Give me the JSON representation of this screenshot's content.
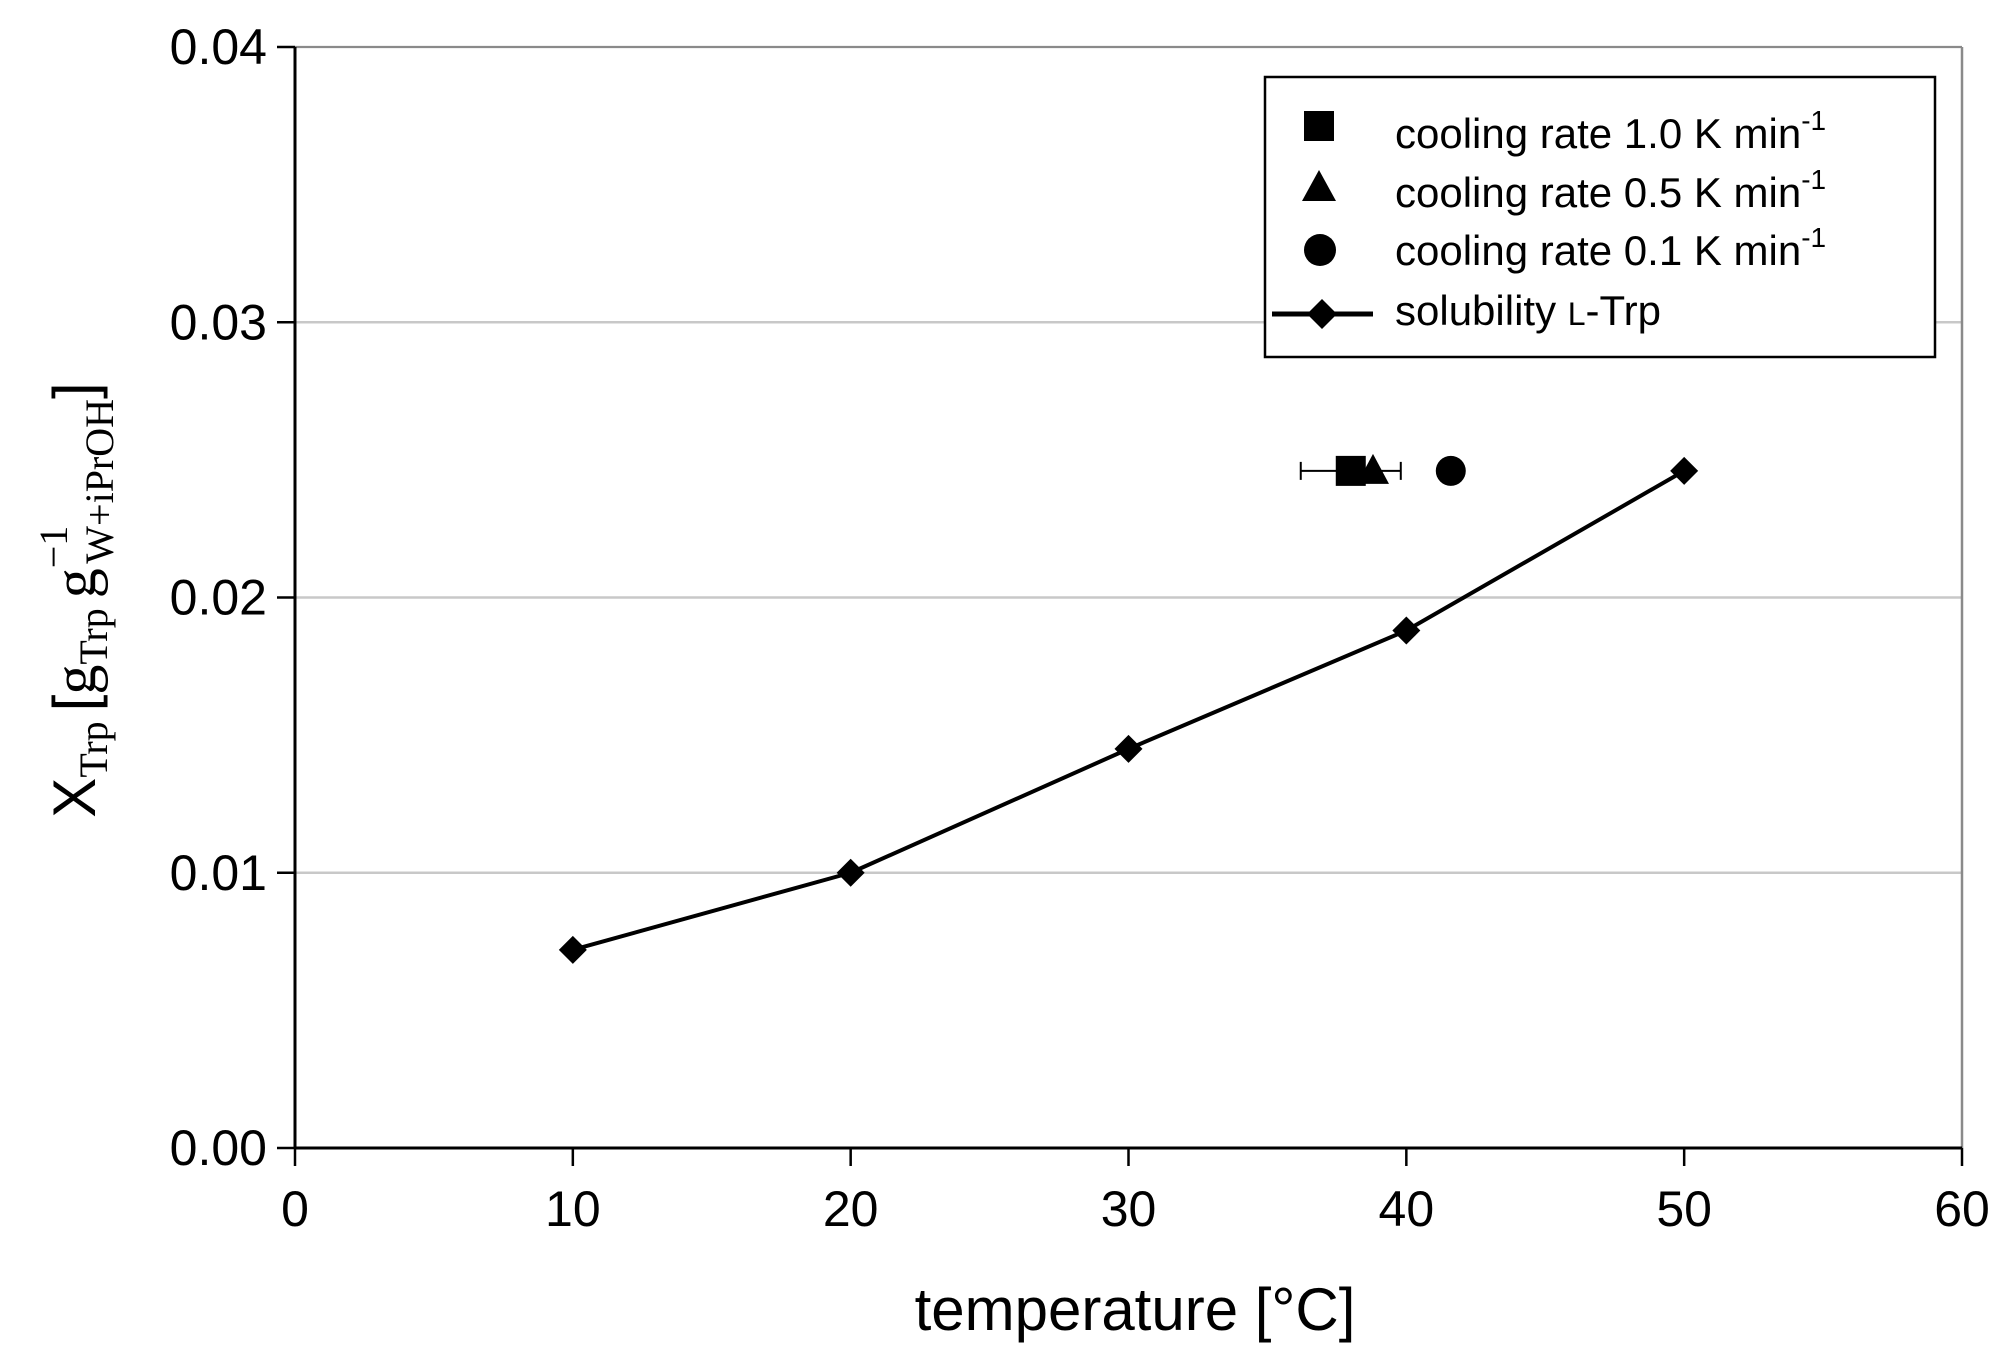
{
  "chart_data": {
    "type": "line",
    "title": "",
    "xlabel": "temperature [°C]",
    "ylabel": {
      "symbol": "X",
      "symbol_sub": "Trp",
      "bracket_open": "[",
      "unit_g1": "g",
      "unit_g1_sub": "Trp",
      "unit_g2": "g",
      "unit_g2_sup": "−1",
      "unit_g2_sub": "W+iPrOH",
      "bracket_close": "]"
    },
    "xlim": [
      0,
      60
    ],
    "ylim": [
      0,
      0.04
    ],
    "x_ticks": [
      0,
      10,
      20,
      30,
      40,
      50,
      60
    ],
    "x_tick_labels": [
      "0",
      "10",
      "20",
      "30",
      "40",
      "50",
      "60"
    ],
    "y_ticks": [
      0,
      0.01,
      0.02,
      0.03,
      0.04
    ],
    "y_tick_labels": [
      "0.00",
      "0.01",
      "0.02",
      "0.03",
      "0.04"
    ],
    "grid": "horizontal",
    "legend_position": "top-right",
    "series": [
      {
        "name": "cooling rate 1.0 K min-1",
        "legend_text": "cooling rate 1.0 K min",
        "legend_sup": "-1",
        "marker": "square",
        "line": false,
        "x": [
          38
        ],
        "y": [
          0.0246
        ],
        "x_err": [
          1.8
        ]
      },
      {
        "name": "cooling rate 0.5 K min-1",
        "legend_text": "cooling rate 0.5 K min",
        "legend_sup": "-1",
        "marker": "triangle",
        "line": false,
        "x": [
          38.8
        ],
        "y": [
          0.0246
        ]
      },
      {
        "name": "cooling rate 0.1 K min-1",
        "legend_text": "cooling rate 0.1 K min",
        "legend_sup": "-1",
        "marker": "circle",
        "line": false,
        "x": [
          41.6
        ],
        "y": [
          0.0246
        ]
      },
      {
        "name": "solubility L-Trp",
        "legend_text": "solubility ",
        "legend_smallcap_l": "L",
        "legend_suffix": "-Trp",
        "marker": "diamond",
        "line": true,
        "x": [
          10,
          20,
          30,
          40,
          50
        ],
        "y": [
          0.0072,
          0.01,
          0.0145,
          0.0188,
          0.0246
        ]
      }
    ]
  },
  "colors": {
    "marker": "#000000",
    "axis": "#000000",
    "grid": "#c8c8c8",
    "frame": "#8a8a8a",
    "background": "#ffffff"
  }
}
